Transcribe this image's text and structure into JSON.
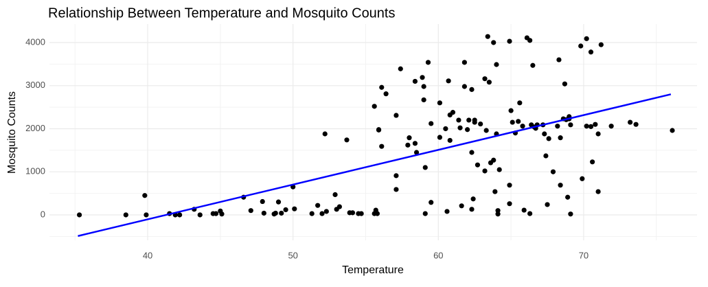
{
  "chart_data": {
    "type": "scatter",
    "title": "Relationship Between Temperature and Mosquito Counts",
    "x_label": "Temperature",
    "y_label": "Mosquito Counts",
    "xlim": [
      33.24,
      77.8
    ],
    "ylim": [
      -590,
      4430
    ],
    "xticks": [
      40,
      50,
      60,
      70
    ],
    "yticks": [
      0,
      1000,
      2000,
      3000,
      4000
    ],
    "grid": true,
    "series": [
      {
        "color": "#000000",
        "x": [
          35.3,
          38.5,
          39.8,
          39.9,
          41.5,
          41.9,
          42.2,
          43.2,
          43.6,
          44.5,
          44.7,
          45.0,
          45.1,
          46.6,
          47.1,
          47.9,
          48.0,
          48.7,
          48.8,
          49.0,
          49.2,
          49.5,
          50.0,
          50.1,
          51.3,
          51.7,
          52.0,
          52.2,
          52.3,
          52.9,
          53.0,
          53.2,
          53.7,
          53.9,
          54.1,
          54.5,
          54.7,
          55.6,
          55.6,
          55.7,
          55.9,
          55.9,
          56.1,
          56.1,
          55.8,
          56.4,
          57.1,
          57.1,
          57.1,
          57.4,
          57.9,
          58.0,
          58.4,
          58.4,
          58.5,
          58.9,
          59.0,
          59.0,
          59.1,
          59.1,
          59.3,
          59.5,
          59.5,
          60.1,
          60.1,
          60.5,
          60.6,
          60.7,
          60.8,
          60.8,
          61.0,
          61.4,
          61.5,
          61.6,
          61.8,
          61.8,
          62.0,
          62.1,
          62.3,
          62.3,
          62.3,
          62.4,
          62.5,
          62.5,
          62.7,
          62.9,
          63.2,
          63.2,
          63.3,
          63.4,
          63.5,
          63.6,
          63.8,
          63.8,
          63.9,
          64.0,
          64.0,
          64.1,
          64.1,
          64.2,
          64.9,
          64.9,
          64.9,
          65.0,
          65.1,
          65.3,
          65.5,
          65.6,
          65.8,
          65.9,
          66.1,
          66.3,
          66.3,
          66.4,
          66.5,
          66.6,
          66.7,
          66.8,
          67.2,
          67.3,
          67.4,
          67.5,
          67.6,
          67.9,
          68.2,
          68.3,
          68.4,
          68.4,
          68.6,
          68.7,
          68.8,
          68.9,
          69.0,
          69.0,
          69.1,
          69.1,
          69.8,
          69.9,
          70.2,
          70.2,
          70.5,
          70.5,
          70.6,
          70.8,
          71.0,
          71.0,
          71.2,
          71.9,
          73.2,
          73.6,
          76.1
        ],
        "values": [
          0,
          0,
          450,
          0,
          30,
          0,
          0,
          130,
          0,
          30,
          30,
          90,
          20,
          410,
          100,
          310,
          40,
          20,
          40,
          300,
          40,
          120,
          650,
          140,
          30,
          220,
          30,
          1880,
          80,
          470,
          130,
          190,
          1740,
          50,
          50,
          30,
          30,
          30,
          2520,
          110,
          1970,
          1980,
          2960,
          1590,
          30,
          2810,
          910,
          590,
          2310,
          3390,
          1620,
          1790,
          3100,
          1660,
          1450,
          3190,
          2670,
          2980,
          1100,
          30,
          3540,
          2120,
          290,
          2600,
          1800,
          2000,
          80,
          3110,
          2320,
          1730,
          2380,
          2200,
          2020,
          210,
          3540,
          2980,
          1980,
          2200,
          2910,
          1450,
          130,
          370,
          2150,
          2200,
          1160,
          2110,
          3160,
          1020,
          1960,
          4140,
          3080,
          1210,
          4000,
          1270,
          540,
          1880,
          3490,
          100,
          20,
          1050,
          4030,
          260,
          690,
          2420,
          2150,
          1900,
          2170,
          2600,
          2060,
          110,
          4110,
          30,
          4050,
          2090,
          3470,
          2040,
          2010,
          2090,
          2090,
          1880,
          1370,
          240,
          1770,
          1000,
          2060,
          3600,
          690,
          1790,
          2230,
          3040,
          2210,
          410,
          2280,
          2230,
          20,
          2090,
          3920,
          840,
          4090,
          2060,
          3780,
          2050,
          1230,
          2100,
          1880,
          540,
          3950,
          2060,
          2150,
          2100,
          1960
        ]
      }
    ],
    "fit": {
      "color": "#0000ff",
      "x": [
        35.2,
        76.0
      ],
      "values": [
        -490,
        2800
      ]
    }
  }
}
